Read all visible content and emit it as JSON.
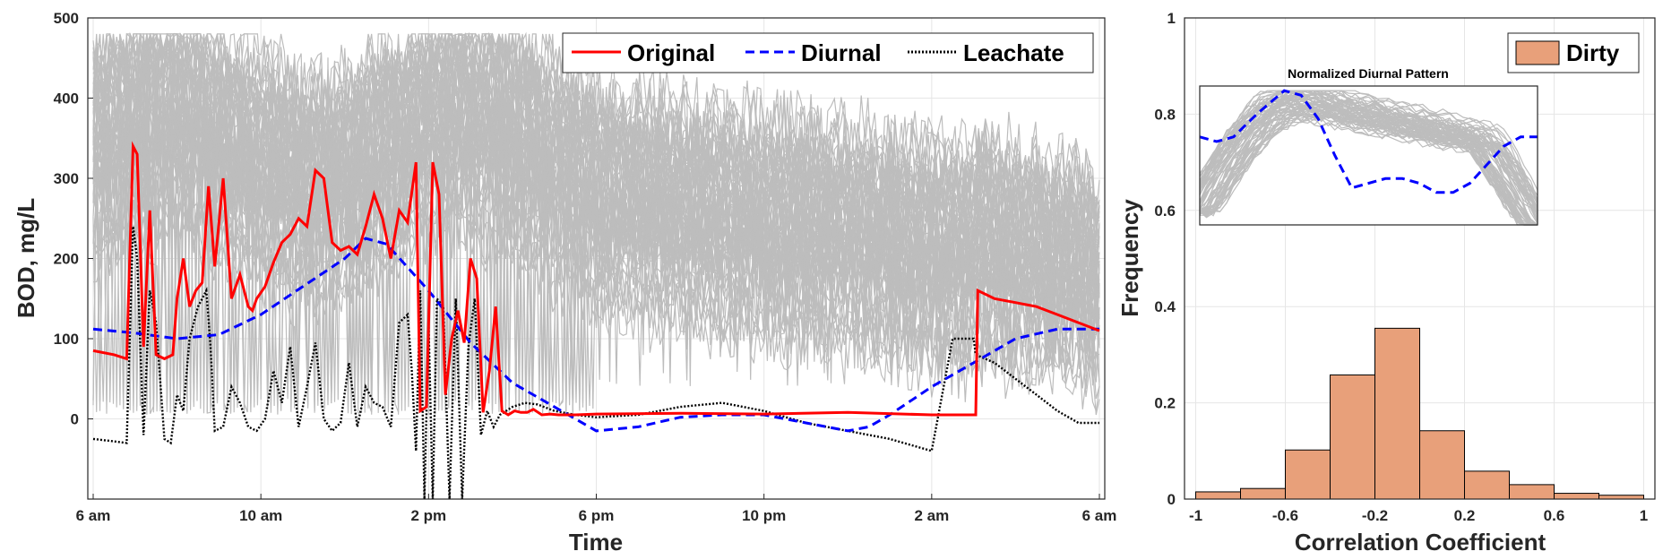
{
  "chart_data": [
    {
      "type": "line",
      "title": "",
      "xlabel": "Time",
      "ylabel": "BOD, mg/L",
      "x_ticks": [
        "6 am",
        "10 am",
        "2 pm",
        "6 pm",
        "10 pm",
        "2 am",
        "6 am"
      ],
      "x_tick_hours": [
        0,
        4,
        8,
        12,
        16,
        20,
        24
      ],
      "xlim_hours": [
        0,
        24
      ],
      "y_ticks": [
        0,
        100,
        200,
        300,
        400,
        500
      ],
      "ylim": [
        -100,
        500
      ],
      "grid": true,
      "legend_position": "top-right",
      "background_traces": {
        "color": "#bdbdbd",
        "description_count": 60
      },
      "series": [
        {
          "name": "Original",
          "color": "#ff0000",
          "style": "solid",
          "x_hours": [
            0,
            0.5,
            0.8,
            0.95,
            1.05,
            1.2,
            1.35,
            1.5,
            1.7,
            1.9,
            2.0,
            2.15,
            2.3,
            2.45,
            2.6,
            2.75,
            2.9,
            3.1,
            3.3,
            3.5,
            3.7,
            3.8,
            3.9,
            4.1,
            4.3,
            4.5,
            4.7,
            4.9,
            5.1,
            5.3,
            5.5,
            5.7,
            5.9,
            6.1,
            6.3,
            6.5,
            6.7,
            6.9,
            7.1,
            7.3,
            7.5,
            7.7,
            7.8,
            7.95,
            8.1,
            8.25,
            8.4,
            8.55,
            8.7,
            8.85,
            9.0,
            9.15,
            9.3,
            9.45,
            9.6,
            9.75,
            9.9,
            10.05,
            10.2,
            10.35,
            10.5,
            10.7,
            10.9,
            11.1,
            11.3,
            11.5,
            12,
            14,
            16,
            18,
            20,
            21.05,
            21.1,
            21.5,
            22,
            22.5,
            23,
            23.5,
            24
          ],
          "values": [
            85,
            80,
            75,
            340,
            330,
            90,
            260,
            80,
            75,
            80,
            150,
            200,
            140,
            160,
            170,
            290,
            190,
            300,
            150,
            180,
            140,
            135,
            150,
            165,
            195,
            220,
            230,
            250,
            240,
            310,
            300,
            220,
            210,
            215,
            205,
            240,
            280,
            250,
            200,
            260,
            245,
            320,
            10,
            15,
            320,
            280,
            30,
            100,
            135,
            95,
            200,
            175,
            8,
            60,
            140,
            10,
            5,
            10,
            8,
            8,
            12,
            5,
            6,
            5,
            5,
            5,
            6,
            7,
            6,
            8,
            5,
            5,
            160,
            150,
            145,
            140,
            130,
            120,
            110
          ]
        },
        {
          "name": "Diurnal",
          "color": "#0000ff",
          "style": "dashed",
          "x_hours": [
            0,
            1,
            2,
            3,
            4,
            5,
            6,
            6.5,
            7,
            8,
            9,
            10,
            11,
            12,
            13,
            14,
            15,
            16,
            17,
            18,
            18.5,
            19,
            20,
            21,
            22,
            23,
            24
          ],
          "values": [
            112,
            107,
            100,
            105,
            130,
            165,
            200,
            225,
            218,
            160,
            95,
            45,
            15,
            -15,
            -10,
            2,
            5,
            5,
            -5,
            -15,
            -10,
            5,
            40,
            70,
            100,
            112,
            112
          ]
        },
        {
          "name": "Leachate",
          "color": "#000000",
          "style": "dotted",
          "x_hours": [
            0,
            0.5,
            0.8,
            0.95,
            1.05,
            1.2,
            1.35,
            1.5,
            1.7,
            1.85,
            2.0,
            2.15,
            2.3,
            2.5,
            2.7,
            2.8,
            2.9,
            3.1,
            3.3,
            3.5,
            3.7,
            3.9,
            4.1,
            4.3,
            4.5,
            4.7,
            4.9,
            5.1,
            5.3,
            5.5,
            5.7,
            5.9,
            6.1,
            6.3,
            6.5,
            6.7,
            6.9,
            7.1,
            7.3,
            7.5,
            7.6,
            7.7,
            7.8,
            7.9,
            8.0,
            8.1,
            8.2,
            8.35,
            8.5,
            8.65,
            8.8,
            8.95,
            9.1,
            9.25,
            9.4,
            9.55,
            9.7,
            9.85,
            10.0,
            10.3,
            10.6,
            11,
            11.5,
            12,
            13,
            14,
            15,
            16,
            17,
            18,
            19,
            20,
            20.5,
            21.0,
            21.05,
            21.5,
            22,
            22.5,
            23,
            23.5,
            24
          ],
          "values": [
            -25,
            -28,
            -30,
            240,
            200,
            -20,
            160,
            120,
            -25,
            -30,
            30,
            10,
            100,
            140,
            160,
            90,
            -15,
            -10,
            40,
            20,
            -10,
            -15,
            0,
            60,
            20,
            90,
            -10,
            40,
            95,
            0,
            -15,
            -5,
            70,
            -10,
            40,
            20,
            15,
            -10,
            120,
            130,
            60,
            -40,
            160,
            -100,
            120,
            -100,
            150,
            140,
            -100,
            150,
            -100,
            90,
            150,
            -20,
            10,
            -10,
            5,
            10,
            15,
            20,
            18,
            10,
            5,
            2,
            5,
            15,
            20,
            10,
            -5,
            -15,
            -25,
            -40,
            100,
            100,
            80,
            70,
            50,
            30,
            10,
            -5,
            -5
          ]
        }
      ]
    },
    {
      "type": "bar",
      "title": "",
      "xlabel": "Correlation Coefficient",
      "ylabel": "Frequency",
      "x_ticks": [
        "-1",
        "-0.6",
        "-0.2",
        "0.2",
        "0.6",
        "1"
      ],
      "x_tick_values": [
        -1,
        -0.6,
        -0.2,
        0.2,
        0.6,
        1
      ],
      "xlim": [
        -1.05,
        1.05
      ],
      "y_ticks": [
        "0",
        "0.2",
        "0.4",
        "0.6",
        "0.8",
        "1"
      ],
      "y_tick_values": [
        0,
        0.2,
        0.4,
        0.6,
        0.8,
        1
      ],
      "ylim": [
        0,
        1
      ],
      "grid": true,
      "legend_position": "top-right",
      "series": [
        {
          "name": "Dirty",
          "color": "#e8a07a",
          "bin_edges": [
            -1,
            -0.8,
            -0.6,
            -0.4,
            -0.2,
            0,
            0.2,
            0.4,
            0.6,
            0.8,
            1
          ],
          "values": [
            0.015,
            0.022,
            0.102,
            0.258,
            0.355,
            0.142,
            0.058,
            0.03,
            0.012,
            0.008
          ]
        }
      ],
      "inset": {
        "title": "Normalized Diurnal Pattern",
        "type": "line",
        "background_traces": {
          "color": "#bdbdbd"
        },
        "series": [
          {
            "name": "",
            "color": "#0000ff",
            "style": "dashed",
            "x": [
              0,
              0.05,
              0.1,
              0.17,
              0.25,
              0.3,
              0.35,
              0.4,
              0.45,
              0.5,
              0.55,
              0.6,
              0.65,
              0.7,
              0.75,
              0.8,
              0.85,
              0.9,
              0.95,
              1
            ],
            "values": [
              0.76,
              0.75,
              0.76,
              0.81,
              0.86,
              0.85,
              0.8,
              0.72,
              0.65,
              0.66,
              0.67,
              0.67,
              0.66,
              0.64,
              0.64,
              0.66,
              0.7,
              0.74,
              0.76,
              0.76
            ]
          }
        ]
      }
    }
  ]
}
